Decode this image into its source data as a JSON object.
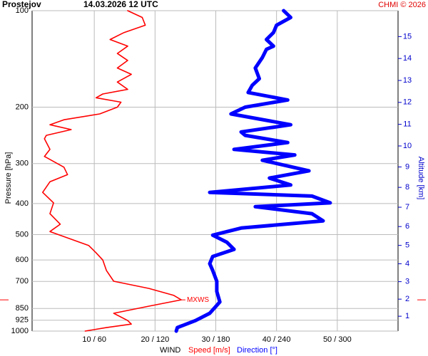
{
  "chart_data": {
    "type": "line",
    "title": "Prostejov",
    "subtitle": "14.03.2026 12 UTC",
    "credit": "CHMI © 2026",
    "xlabel": "WIND",
    "ylabel": "Pressure [hPa]",
    "y2label": "Altitude [km]",
    "annotation": "MXWS",
    "ylog": true,
    "grid": true,
    "ylim": [
      1000,
      100
    ],
    "yticks": [
      100,
      200,
      300,
      400,
      500,
      600,
      700,
      850,
      925,
      1000
    ],
    "xlim": [
      0,
      60
    ],
    "x2lim": [
      0,
      360
    ],
    "xticks": [
      {
        "value": 10,
        "label": "10 / 60"
      },
      {
        "value": 20,
        "label": "20 / 120"
      },
      {
        "value": 30,
        "label": "30 / 180"
      },
      {
        "value": 40,
        "label": "40 / 240"
      },
      {
        "value": 50,
        "label": "50 / 300"
      }
    ],
    "y2ticks": [
      1,
      2,
      3,
      4,
      5,
      6,
      7,
      8,
      9,
      10,
      11,
      12,
      13,
      14,
      15
    ],
    "y2color": "#0000cc",
    "series": [
      {
        "name": "Speed [m/s]",
        "color": "#ff0000",
        "pressure": [
          100,
          105,
          111,
          117,
          123,
          129,
          136,
          143,
          151,
          158,
          167,
          176,
          182,
          187,
          193,
          200,
          210,
          219,
          227,
          235,
          245,
          251,
          271,
          285,
          308,
          325,
          342,
          369,
          398,
          430,
          464,
          489,
          541,
          570,
          600,
          647,
          699,
          736,
          774,
          799,
          836,
          880,
          927,
          951,
          975,
          1000
        ],
        "values": [
          15.5,
          17.9,
          18.4,
          14.9,
          12.6,
          15.5,
          13.8,
          15.5,
          13.8,
          16.1,
          13.8,
          15.5,
          11.4,
          10.3,
          14.4,
          13.8,
          10.9,
          5.0,
          2.7,
          6.2,
          2.1,
          1.8,
          2.7,
          1.8,
          5.0,
          5.6,
          2.7,
          1.5,
          3.3,
          2.7,
          4.4,
          2.7,
          9.1,
          10.3,
          11.4,
          12.0,
          13.2,
          19.0,
          23.1,
          24.3,
          19.0,
          13.2,
          15.5,
          16.1,
          12.0,
          8.5
        ]
      },
      {
        "name": "Direction [°]",
        "color": "#0000ff",
        "axis": "x2",
        "pressure": [
          100,
          105,
          111,
          117,
          123,
          129,
          132,
          140,
          151,
          163,
          171,
          180,
          190,
          200,
          210,
          227,
          239,
          245,
          258,
          271,
          282,
          293,
          316,
          333,
          350,
          369,
          379,
          398,
          409,
          430,
          453,
          477,
          502,
          528,
          556,
          585,
          616,
          647,
          699,
          752,
          811,
          880,
          927,
          975,
          1000
        ],
        "values": [
          247,
          254,
          240,
          237,
          230,
          237,
          230,
          226,
          219,
          223,
          216,
          212,
          251,
          209,
          195,
          254,
          205,
          209,
          251,
          198,
          258,
          226,
          272,
          233,
          254,
          174,
          275,
          293,
          219,
          275,
          286,
          205,
          177,
          191,
          198,
          177,
          174,
          177,
          181,
          181,
          184,
          174,
          160,
          142,
          141
        ]
      }
    ]
  }
}
